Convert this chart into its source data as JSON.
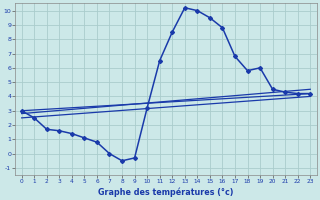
{
  "xlabel": "Graphe des températures (°c)",
  "bg_color": "#cce8e8",
  "grid_color": "#aacccc",
  "line_color": "#1a3aaa",
  "xlim": [
    -0.5,
    23.5
  ],
  "ylim": [
    -1.5,
    10.5
  ],
  "xticks": [
    0,
    1,
    2,
    3,
    4,
    5,
    6,
    7,
    8,
    9,
    10,
    11,
    12,
    13,
    14,
    15,
    16,
    17,
    18,
    19,
    20,
    21,
    22,
    23
  ],
  "yticks": [
    -1,
    0,
    1,
    2,
    3,
    4,
    5,
    6,
    7,
    8,
    9,
    10
  ],
  "curve1_x": [
    0,
    1,
    2,
    3,
    4,
    5,
    6,
    7,
    8,
    9,
    10,
    11,
    12,
    13,
    14,
    15,
    16,
    17,
    18,
    19,
    20,
    21,
    22,
    23
  ],
  "curve1_y": [
    3.0,
    2.5,
    1.7,
    1.6,
    1.4,
    1.1,
    0.8,
    0.0,
    -0.5,
    -0.3,
    3.2,
    6.5,
    8.5,
    10.2,
    10.0,
    9.5,
    8.8,
    6.8,
    5.8,
    6.0,
    4.5,
    4.3,
    4.2,
    4.2
  ],
  "line2_x": [
    0,
    23
  ],
  "line2_y": [
    3.0,
    4.2
  ],
  "line3_x": [
    0,
    23
  ],
  "line3_y": [
    2.8,
    4.5
  ],
  "line4_x": [
    0,
    23
  ],
  "line4_y": [
    2.5,
    4.0
  ]
}
